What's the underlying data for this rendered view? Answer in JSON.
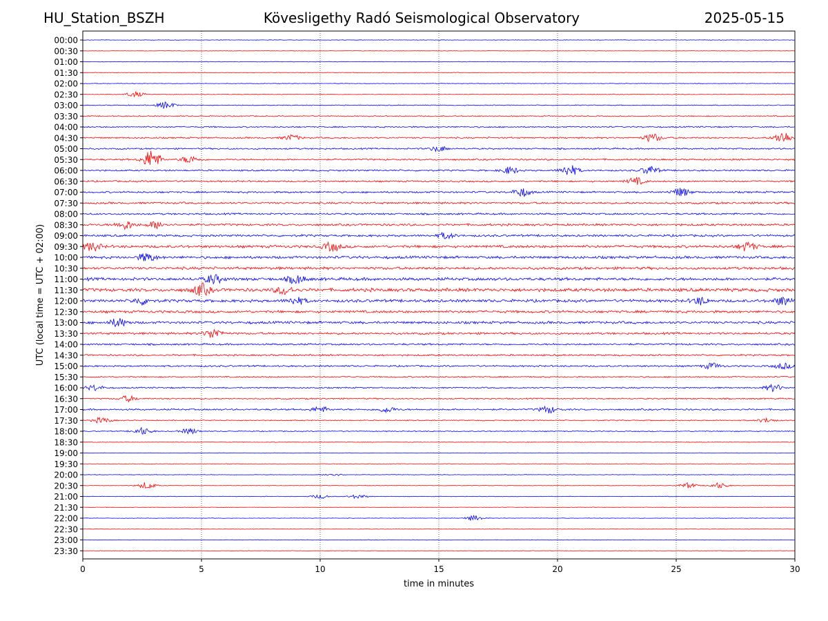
{
  "header": {
    "station": "HU_Station_BSZH",
    "title": "Kövesligethy Radó Seismological Observatory",
    "date": "2025-05-15"
  },
  "chart_data": {
    "type": "line",
    "title": "Kövesligethy Radó Seismological Observatory",
    "xlabel": "time in minutes",
    "ylabel": "UTC (local time = UTC + 02:00)",
    "xlim": [
      0,
      30
    ],
    "xticks": [
      "0",
      "5",
      "10",
      "15",
      "20",
      "25",
      "30"
    ],
    "xgrid": "dotted vertical lines at 5, 10, 15, 20, 25 minutes",
    "colors": [
      "#0000ff",
      "#ff0000"
    ],
    "row_labels": [
      "00:00",
      "00:30",
      "01:00",
      "01:30",
      "02:00",
      "02:30",
      "03:00",
      "03:30",
      "04:00",
      "04:30",
      "05:00",
      "05:30",
      "06:00",
      "06:30",
      "07:00",
      "07:30",
      "08:00",
      "08:30",
      "09:00",
      "09:30",
      "10:00",
      "10:30",
      "11:00",
      "11:30",
      "12:00",
      "12:30",
      "13:00",
      "13:30",
      "14:00",
      "14:30",
      "15:00",
      "15:30",
      "16:00",
      "16:30",
      "17:00",
      "17:30",
      "18:00",
      "18:30",
      "19:00",
      "19:30",
      "20:00",
      "20:30",
      "21:00",
      "21:30",
      "22:00",
      "22:30",
      "23:00",
      "23:30"
    ],
    "noise_level": [
      0.3,
      0.3,
      0.35,
      0.35,
      0.35,
      0.4,
      0.5,
      0.6,
      0.8,
      0.9,
      0.9,
      1.0,
      1.0,
      1.0,
      1.1,
      1.2,
      1.1,
      1.3,
      1.3,
      1.6,
      1.6,
      1.6,
      1.8,
      2.0,
      1.7,
      1.5,
      1.5,
      1.3,
      1.1,
      1.0,
      1.0,
      0.8,
      0.8,
      0.8,
      1.0,
      0.6,
      0.6,
      0.4,
      0.3,
      0.3,
      0.3,
      0.3,
      0.3,
      0.3,
      0.3,
      0.3,
      0.3,
      0.3
    ],
    "events": [
      {
        "row": 5,
        "t": 2.2,
        "amp": 4
      },
      {
        "row": 6,
        "t": 3.5,
        "amp": 5
      },
      {
        "row": 9,
        "t": 8.8,
        "amp": 4
      },
      {
        "row": 9,
        "t": 24.0,
        "amp": 6
      },
      {
        "row": 9,
        "t": 29.5,
        "amp": 9
      },
      {
        "row": 10,
        "t": 15.0,
        "amp": 4
      },
      {
        "row": 11,
        "t": 2.9,
        "amp": 14
      },
      {
        "row": 11,
        "t": 4.5,
        "amp": 5
      },
      {
        "row": 12,
        "t": 18.0,
        "amp": 5
      },
      {
        "row": 12,
        "t": 20.5,
        "amp": 8
      },
      {
        "row": 12,
        "t": 23.9,
        "amp": 6
      },
      {
        "row": 13,
        "t": 23.3,
        "amp": 5
      },
      {
        "row": 14,
        "t": 18.5,
        "amp": 6
      },
      {
        "row": 14,
        "t": 25.2,
        "amp": 6
      },
      {
        "row": 17,
        "t": 1.8,
        "amp": 6
      },
      {
        "row": 17,
        "t": 3.1,
        "amp": 5
      },
      {
        "row": 18,
        "t": 15.3,
        "amp": 4
      },
      {
        "row": 19,
        "t": 0.4,
        "amp": 6
      },
      {
        "row": 19,
        "t": 10.5,
        "amp": 6
      },
      {
        "row": 19,
        "t": 28.0,
        "amp": 6
      },
      {
        "row": 20,
        "t": 2.7,
        "amp": 6
      },
      {
        "row": 22,
        "t": 5.5,
        "amp": 6
      },
      {
        "row": 22,
        "t": 9.0,
        "amp": 6
      },
      {
        "row": 23,
        "t": 5.0,
        "amp": 8
      },
      {
        "row": 23,
        "t": 8.5,
        "amp": 6
      },
      {
        "row": 24,
        "t": 2.5,
        "amp": 5
      },
      {
        "row": 24,
        "t": 9.0,
        "amp": 5
      },
      {
        "row": 24,
        "t": 26.0,
        "amp": 5
      },
      {
        "row": 24,
        "t": 29.5,
        "amp": 6
      },
      {
        "row": 26,
        "t": 1.5,
        "amp": 6
      },
      {
        "row": 27,
        "t": 5.5,
        "amp": 7
      },
      {
        "row": 30,
        "t": 26.5,
        "amp": 4
      },
      {
        "row": 30,
        "t": 29.5,
        "amp": 4
      },
      {
        "row": 32,
        "t": 0.5,
        "amp": 4
      },
      {
        "row": 32,
        "t": 29.1,
        "amp": 5
      },
      {
        "row": 33,
        "t": 1.9,
        "amp": 4
      },
      {
        "row": 34,
        "t": 10.0,
        "amp": 4
      },
      {
        "row": 34,
        "t": 12.8,
        "amp": 4
      },
      {
        "row": 34,
        "t": 19.6,
        "amp": 5
      },
      {
        "row": 35,
        "t": 0.8,
        "amp": 4
      },
      {
        "row": 35,
        "t": 28.8,
        "amp": 3
      },
      {
        "row": 36,
        "t": 2.5,
        "amp": 5
      },
      {
        "row": 36,
        "t": 4.5,
        "amp": 4
      },
      {
        "row": 40,
        "t": 10.5,
        "amp": 2
      },
      {
        "row": 41,
        "t": 2.7,
        "amp": 5
      },
      {
        "row": 41,
        "t": 25.5,
        "amp": 4
      },
      {
        "row": 41,
        "t": 26.8,
        "amp": 4
      },
      {
        "row": 42,
        "t": 10.0,
        "amp": 3
      },
      {
        "row": 42,
        "t": 11.6,
        "amp": 3
      },
      {
        "row": 44,
        "t": 16.5,
        "amp": 4
      }
    ]
  }
}
